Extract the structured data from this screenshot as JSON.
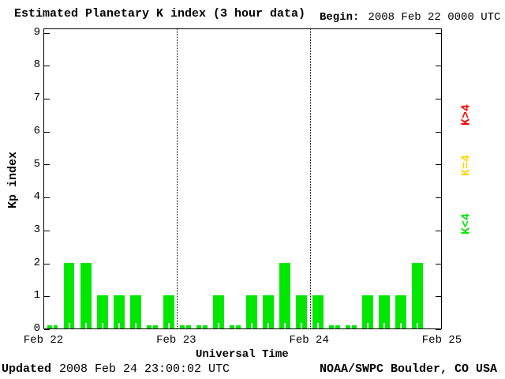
{
  "title": "Estimated Planetary K index (3 hour data)",
  "begin": {
    "label": "Begin:",
    "value": "2008 Feb 22 0000 UTC"
  },
  "y_axis": {
    "label": "Kp index",
    "ticks": [
      0,
      1,
      2,
      3,
      4,
      5,
      6,
      7,
      8,
      9
    ],
    "min": 0,
    "max": 9
  },
  "x_axis": {
    "label": "Universal Time",
    "tick_labels": [
      "Feb 22",
      "Feb 23",
      "Feb 24",
      "Feb 25"
    ]
  },
  "legend": [
    {
      "label": "K>4",
      "color": "#ff0000"
    },
    {
      "label": "K=4",
      "color": "#ffd700"
    },
    {
      "label": "K<4",
      "color": "#00e800"
    }
  ],
  "footer": {
    "updated_label": "Updated",
    "updated_value": "2008 Feb 24 23:00:02 UTC",
    "credit": "NOAA/SWPC Boulder, CO USA"
  },
  "chart_data": {
    "type": "bar",
    "title": "Estimated Planetary K index (3 hour data)",
    "xlabel": "Universal Time",
    "ylabel": "Kp index",
    "ylim": [
      0,
      9
    ],
    "bin_hours": 3,
    "bar_color": "#00e800",
    "grid": "dotted vertical lines at day boundaries",
    "categories_days": [
      "Feb 22",
      "Feb 23",
      "Feb 24",
      "Feb 25"
    ],
    "values": [
      0,
      2,
      2,
      1,
      1,
      1,
      0,
      1,
      0,
      0,
      1,
      0,
      1,
      1,
      2,
      1,
      1,
      0,
      0,
      1,
      1,
      1,
      2,
      null
    ],
    "values_by_day": {
      "Feb 22": [
        0,
        2,
        2,
        1,
        1,
        1,
        0,
        1
      ],
      "Feb 23": [
        0,
        0,
        1,
        0,
        1,
        1,
        2,
        1
      ],
      "Feb 24": [
        1,
        0,
        0,
        1,
        1,
        1,
        2,
        null
      ]
    },
    "note_null": "last 3-hour bin of Feb 24 not yet plotted"
  }
}
